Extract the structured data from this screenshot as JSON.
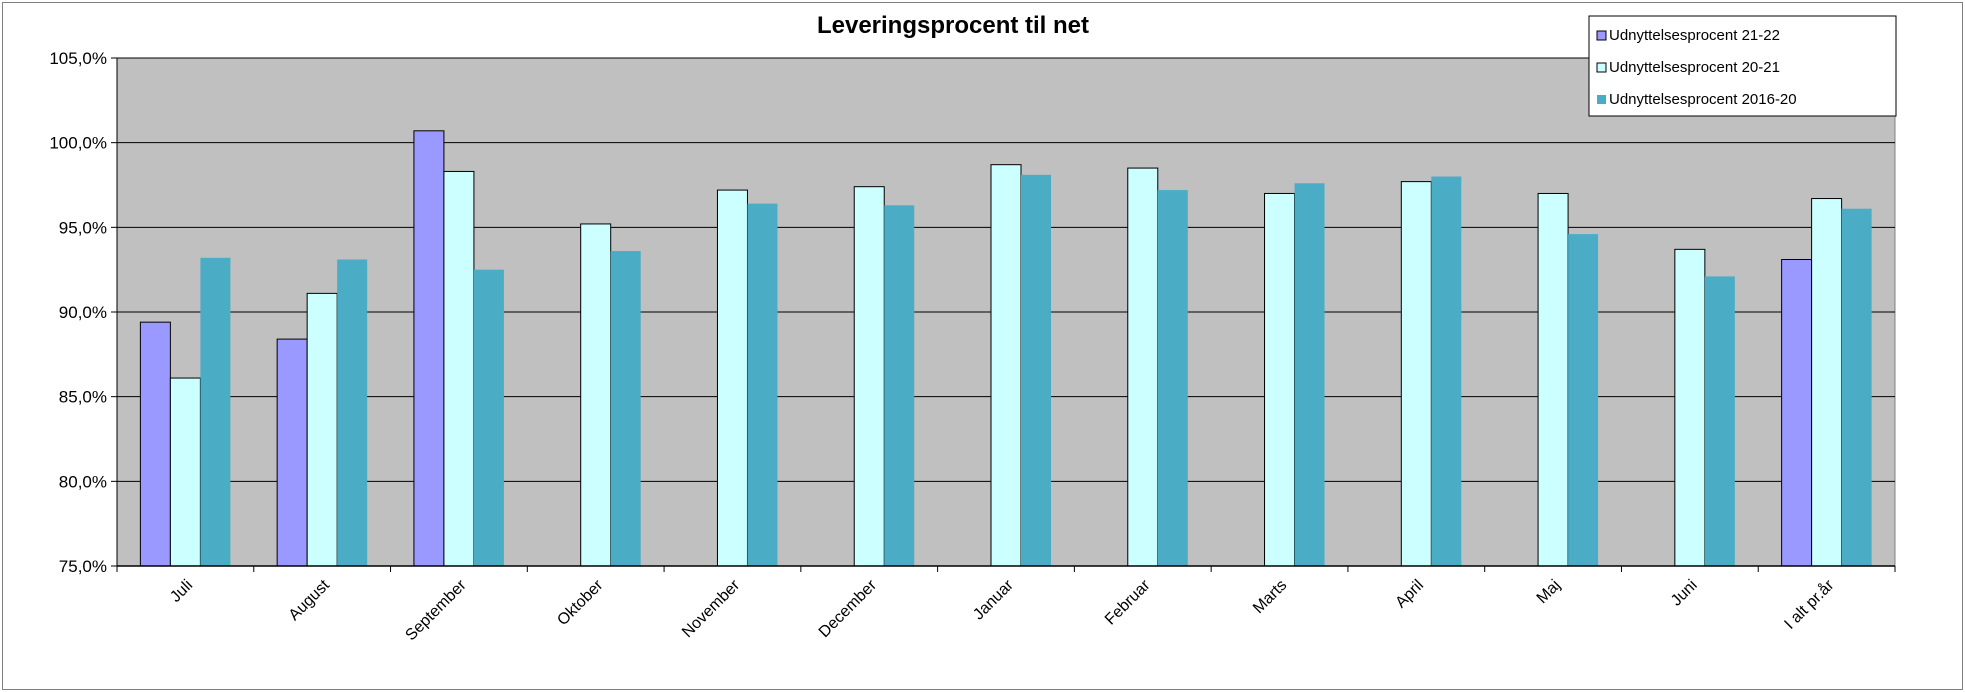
{
  "chart_data": {
    "type": "bar",
    "title": "Leveringsprocent til net",
    "xlabel": "",
    "ylabel": "",
    "categories": [
      "Juli",
      "August",
      "September",
      "Oktober",
      "November",
      "December",
      "Januar",
      "Februar",
      "Marts",
      "April",
      "Maj",
      "Juni",
      "I alt pr.år"
    ],
    "series": [
      {
        "name": "Udnyttelsesprocent 21-22",
        "color": "#9999ff",
        "values": [
          89.4,
          88.4,
          100.7,
          75.0,
          75.0,
          75.0,
          75.0,
          75.0,
          75.0,
          75.0,
          75.0,
          75.0,
          93.1
        ]
      },
      {
        "name": "Udnyttelsesprocent 20-21",
        "color": "#ccffff",
        "values": [
          86.1,
          91.1,
          98.3,
          95.2,
          97.2,
          97.4,
          98.7,
          98.5,
          97.0,
          97.7,
          97.0,
          93.7,
          96.7
        ]
      },
      {
        "name": "Udnyttelsesprocent 2016-20",
        "color": "#4bacc6",
        "values": [
          93.2,
          93.1,
          92.5,
          93.6,
          96.4,
          96.3,
          98.1,
          97.2,
          97.6,
          98.0,
          94.6,
          92.1,
          96.1
        ]
      }
    ],
    "ylim": [
      75,
      105
    ],
    "yticks": [
      75,
      80,
      85,
      90,
      95,
      100,
      105
    ],
    "ytick_labels": [
      "75,0%",
      "80,0%",
      "85,0%",
      "90,0%",
      "95,0%",
      "100,0%",
      "105,0%"
    ],
    "grid": true,
    "plot_background": "#c0c0c0",
    "legend_position": "top-right"
  }
}
